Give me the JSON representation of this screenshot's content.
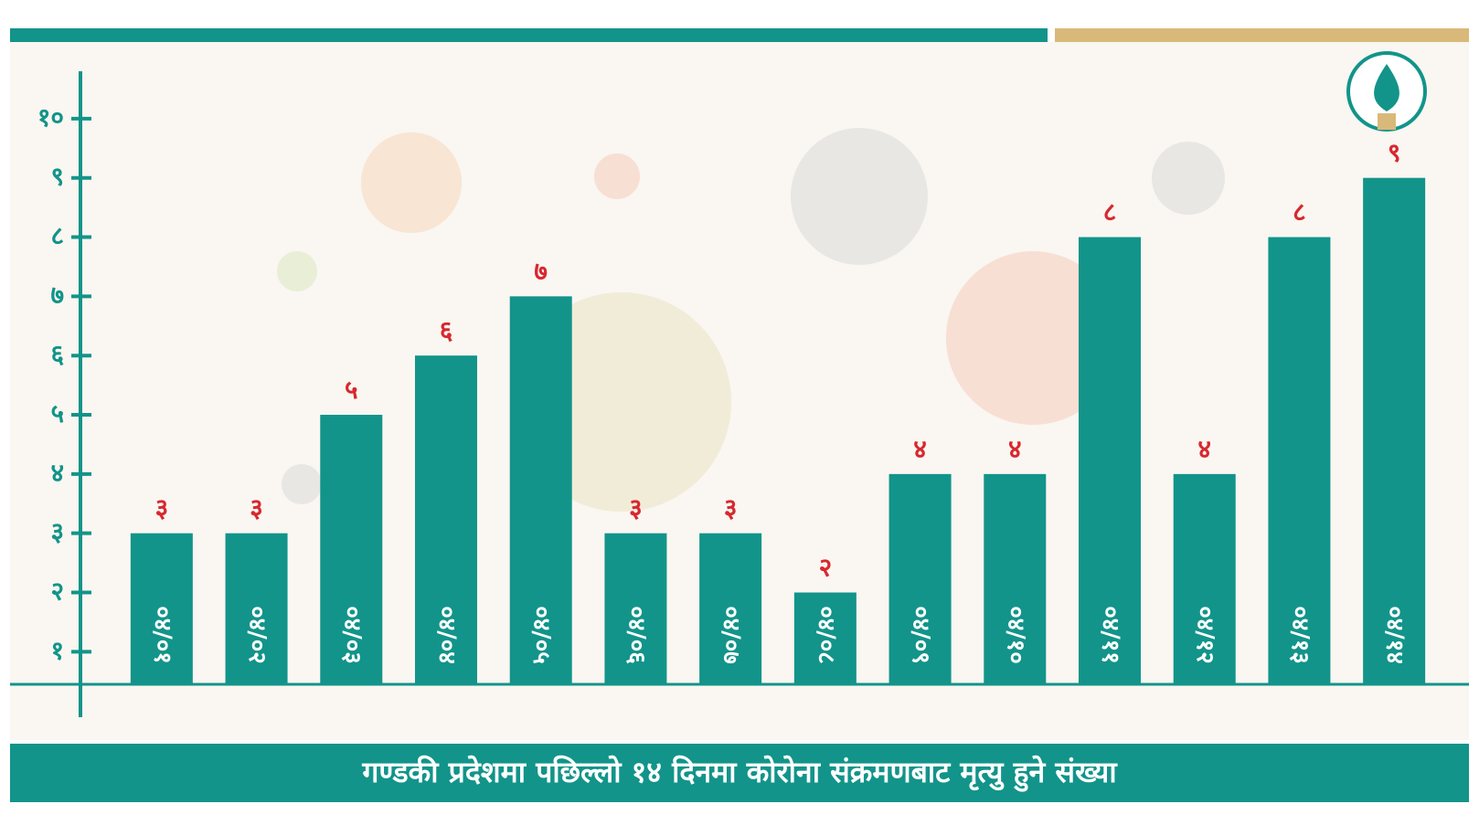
{
  "chart_data": {
    "type": "bar",
    "title": "गण्डकी प्रदेशमा पछिल्लो १४ दिनमा कोरोना संक्रमणबाट मृत्यु हुने संख्या",
    "categories": [
      "०४/०१",
      "०४/०२",
      "०४/०३",
      "०४/०४",
      "०४/०५",
      "०४/०६",
      "०४/०७",
      "०४/०८",
      "०४/०९",
      "०४/१०",
      "०४/११",
      "०४/१२",
      "०४/१३",
      "०४/१४"
    ],
    "values": [
      3,
      3,
      5,
      6,
      7,
      3,
      3,
      2,
      4,
      4,
      8,
      4,
      8,
      9
    ],
    "value_labels": [
      "३",
      "३",
      "५",
      "६",
      "७",
      "३",
      "३",
      "२",
      "४",
      "४",
      "८",
      "४",
      "८",
      "९"
    ],
    "color": "#12948a",
    "ylim": [
      0.45,
      10.8
    ],
    "yticks": [
      {
        "value": 1,
        "label": "१"
      },
      {
        "value": 2,
        "label": "२"
      },
      {
        "value": 3,
        "label": "३"
      },
      {
        "value": 4,
        "label": "४"
      },
      {
        "value": 5,
        "label": "५"
      },
      {
        "value": 6,
        "label": "६"
      },
      {
        "value": 7,
        "label": "७"
      },
      {
        "value": 8,
        "label": "८"
      },
      {
        "value": 9,
        "label": "९"
      },
      {
        "value": 10,
        "label": "१०"
      }
    ],
    "grid": false
  }
}
